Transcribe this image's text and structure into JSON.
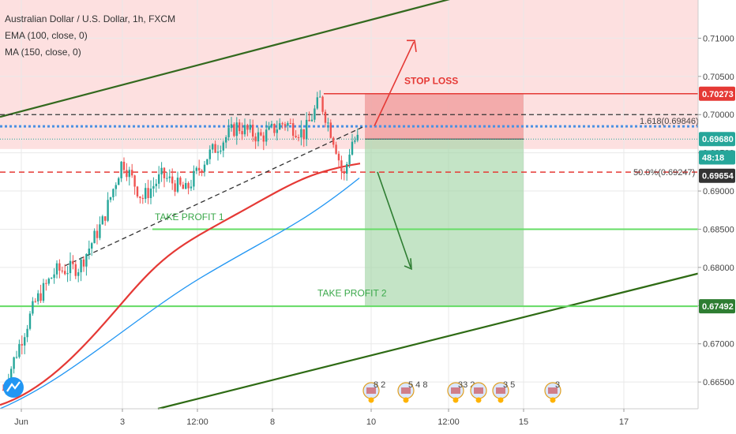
{
  "legend": {
    "title": "Australian Dollar / U.S. Dollar, 1h, FXCM",
    "ema": "EMA (100, close, 0)",
    "ma": "MA (150, close, 0)"
  },
  "colors": {
    "up": "#26a69a",
    "down": "#ef5350",
    "ema": "#e53935",
    "ma": "#2196f3",
    "channel": "#33691e",
    "stop_zone": "#ef9a9a",
    "tp_zone": "#a5d6a7",
    "tp_line": "#66dd66"
  },
  "chart_data": {
    "type": "candlestick",
    "symbol": "Australian Dollar / U.S. Dollar",
    "timeframe": "1h",
    "source": "FXCM",
    "y_range": [
      0.6615,
      0.715
    ],
    "y_ticks": [
      "0.71000",
      "0.70500",
      "0.70000",
      "0.69500",
      "0.69000",
      "0.68500",
      "0.68000",
      "0.67500",
      "0.67000",
      "0.66500"
    ],
    "y_tick_values": [
      0.71,
      0.705,
      0.7,
      0.695,
      0.69,
      0.685,
      0.68,
      0.675,
      0.67,
      0.665
    ],
    "x_ticks": [
      "Jun",
      "3",
      "12:00",
      "8",
      "10",
      "12:00",
      "15",
      "17"
    ],
    "price_tags": [
      {
        "label": "0.70273",
        "value": 0.70273,
        "bg": "#e53935",
        "color": "#ffffff"
      },
      {
        "label": "0.69680",
        "value": 0.6968,
        "bg": "#26a69a",
        "color": "#ffffff"
      },
      {
        "label": "48:18",
        "value": 0.6944,
        "bg": "#26a69a",
        "color": "#ffffff"
      },
      {
        "label": "0.69654",
        "value": 0.692,
        "bg": "#333333",
        "color": "#ffffff"
      },
      {
        "label": "0.67492",
        "value": 0.67492,
        "bg": "#2e7d32",
        "color": "#ffffff"
      }
    ],
    "fib_levels": [
      {
        "label": "1.618(0.69846)",
        "value": 0.69846
      },
      {
        "label": "50.0%(0.69247)",
        "value": 0.69247
      }
    ],
    "annotations": {
      "stop_loss": "STOP LOSS",
      "take_profit_1": "TAKE PROFIT 1",
      "take_profit_2": "TAKE PROFIT 2"
    },
    "levels": {
      "stop_loss": 0.70273,
      "entry": 0.6968,
      "take_profit_1": 0.685,
      "take_profit_2": 0.67492,
      "dashed_black": 0.7
    },
    "event_labels": [
      "8 2",
      "5 4 8",
      "33 2",
      "",
      "3 5",
      "3"
    ]
  }
}
